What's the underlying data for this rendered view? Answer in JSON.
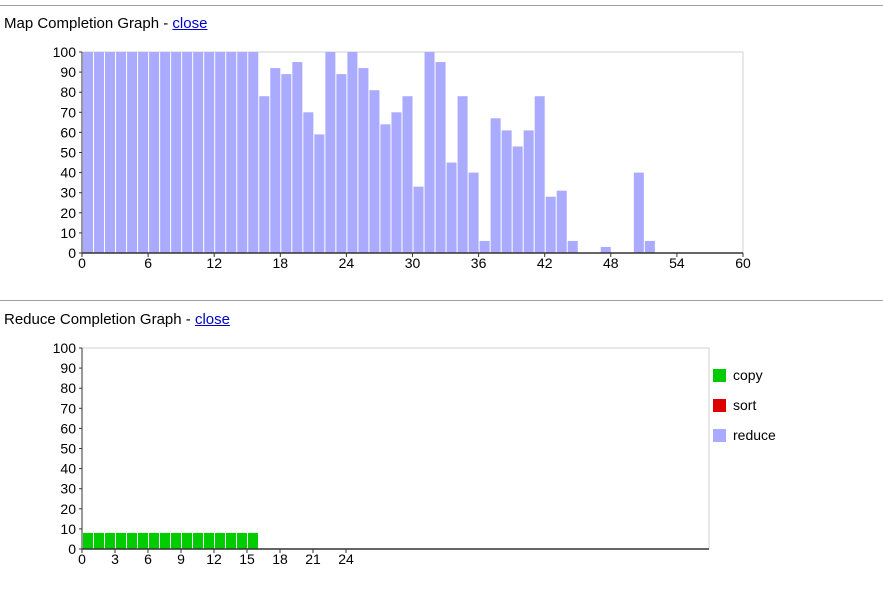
{
  "map_section": {
    "title": "Map Completion Graph",
    "separator": " - ",
    "close_label": "close"
  },
  "reduce_section": {
    "title": "Reduce Completion Graph",
    "separator": " - ",
    "close_label": "close"
  },
  "chart_data": [
    {
      "type": "bar",
      "name": "map",
      "title": "",
      "xlabel": "",
      "ylabel": "",
      "xlim": [
        0,
        60
      ],
      "ylim": [
        0,
        100
      ],
      "x_ticks": [
        0,
        6,
        12,
        18,
        24,
        30,
        36,
        42,
        48,
        54,
        60
      ],
      "y_ticks": [
        0,
        10,
        20,
        30,
        40,
        50,
        60,
        70,
        80,
        90,
        100
      ],
      "legend": null,
      "series": [
        {
          "color": "#aaaaff",
          "values": [
            100,
            100,
            100,
            100,
            100,
            100,
            100,
            100,
            100,
            100,
            100,
            100,
            100,
            100,
            100,
            100,
            78,
            92,
            89,
            95,
            70,
            59,
            100,
            89,
            100,
            92,
            81,
            64,
            70,
            78,
            33,
            100,
            95,
            45,
            78,
            40,
            6,
            67,
            61,
            53,
            61,
            78,
            28,
            31,
            6,
            0,
            0,
            3,
            0,
            0,
            40,
            6,
            0,
            0,
            0,
            0,
            0,
            0,
            0,
            0
          ]
        }
      ]
    },
    {
      "type": "bar",
      "name": "reduce",
      "stacked": true,
      "title": "",
      "xlabel": "",
      "ylabel": "",
      "xlim": [
        0,
        57
      ],
      "ylim": [
        0,
        100
      ],
      "x_ticks": [
        0,
        3,
        6,
        9,
        12,
        15,
        18,
        21,
        24
      ],
      "y_ticks": [
        0,
        10,
        20,
        30,
        40,
        50,
        60,
        70,
        80,
        90,
        100
      ],
      "legend": "right",
      "series": [
        {
          "name": "copy",
          "color": "#00cc00",
          "values": [
            8,
            8,
            8,
            8,
            8,
            8,
            8,
            8,
            8,
            8,
            8,
            8,
            8,
            8,
            8,
            8
          ]
        },
        {
          "name": "sort",
          "color": "#dd0000",
          "values": [
            0,
            0,
            0,
            0,
            0,
            0,
            0,
            0,
            0,
            0,
            0,
            0,
            0,
            0,
            0,
            0
          ]
        },
        {
          "name": "reduce",
          "color": "#aaaaff",
          "values": [
            0,
            0,
            0,
            0,
            0,
            0,
            0,
            0,
            0,
            0,
            0,
            0,
            0,
            0,
            0,
            0
          ]
        }
      ]
    }
  ]
}
